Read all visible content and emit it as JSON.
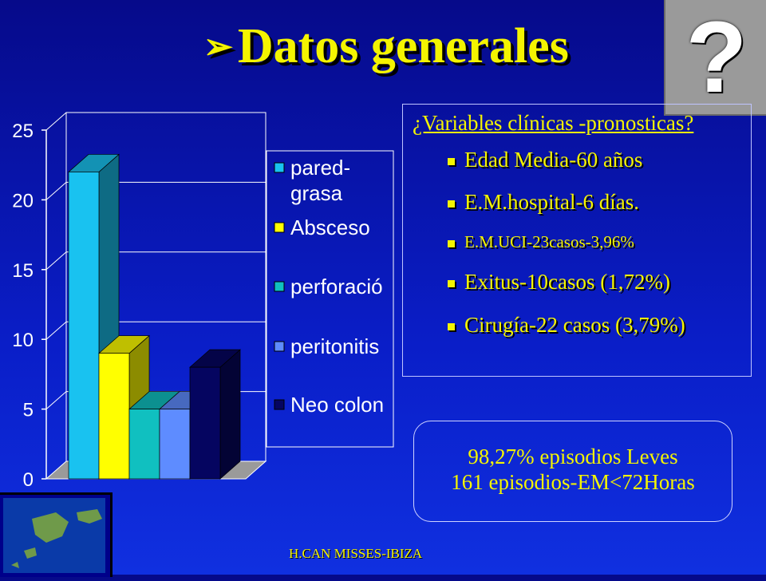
{
  "title": "Datos generales",
  "title_arrow": "➢",
  "help_glyph": "?",
  "chart_data": {
    "type": "bar",
    "categories": [
      "pared- grasa",
      "Absceso",
      "perforació",
      "peritonitis",
      "Neo colon"
    ],
    "values": [
      22,
      9,
      5,
      5,
      8
    ],
    "legend": [
      {
        "lines": [
          "pared-",
          "grasa"
        ],
        "color": "#19c2f0"
      },
      {
        "lines": [
          "Absceso"
        ],
        "color": "#ffff00"
      },
      {
        "lines": [
          "perforació"
        ],
        "color": "#10c0c0"
      },
      {
        "lines": [
          "peritonitis"
        ],
        "color": "#5e8cff"
      },
      {
        "lines": [
          "Neo colon"
        ],
        "color": "#050560"
      }
    ],
    "yticks": [
      "0",
      "5",
      "10",
      "15",
      "20",
      "25"
    ],
    "ylim": [
      0,
      25
    ],
    "legend_position": "right",
    "grid": true
  },
  "info": {
    "heading": "¿Variables clínicas -pronosticas?",
    "items": [
      "Edad Media-60 años",
      "E.M.hospital-6 días.",
      "E.M.UCI-23casos-3,96%",
      "Exitus-10casos (1,72%)",
      "Cirugía-22 casos (3,79%)"
    ]
  },
  "summary": {
    "line1": "98,27% episodios Leves",
    "line2": "161 episodios-EM<72Horas"
  },
  "footer": "H.CAN MISSES-IBIZA",
  "colors": {
    "accent": "#f4f400",
    "background": "#0a1ec8"
  }
}
